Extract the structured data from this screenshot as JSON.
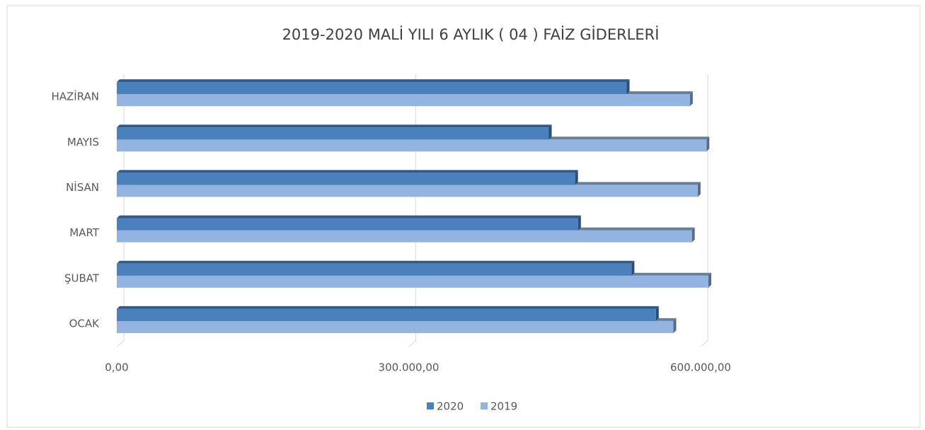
{
  "chart_data": {
    "type": "bar",
    "orientation": "horizontal",
    "title": "2019-2020 MALİ YILI 6 AYLIK ( 04 ) FAİZ GİDERLERİ",
    "categories": [
      "OCAK",
      "ŞUBAT",
      "MART",
      "NİSAN",
      "MAYIS",
      "HAZİRAN"
    ],
    "series": [
      {
        "name": "2020",
        "color": "#4a81bd",
        "values": [
          554000,
          529000,
          474000,
          471000,
          444000,
          524000
        ]
      },
      {
        "name": "2019",
        "color": "#93b3e0",
        "values": [
          572000,
          608000,
          591000,
          597000,
          606000,
          589000
        ]
      }
    ],
    "xlim": [
      0,
      600000
    ],
    "xticks": [
      {
        "value": 0,
        "label": "0,00"
      },
      {
        "value": 300000,
        "label": "300.000,00"
      },
      {
        "value": 600000,
        "label": "600.000,00"
      }
    ],
    "grid": true,
    "legend": "bottom"
  }
}
